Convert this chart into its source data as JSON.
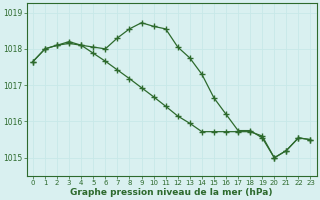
{
  "line1_x": [
    0,
    1,
    2,
    3,
    4,
    5,
    6,
    7,
    8,
    9,
    10,
    11,
    12,
    13,
    14,
    15,
    16,
    17,
    18,
    19,
    20,
    21,
    22,
    23
  ],
  "line1_y": [
    1017.65,
    1018.0,
    1018.1,
    1018.2,
    1018.1,
    1018.05,
    1018.0,
    1018.3,
    1018.55,
    1018.72,
    1018.62,
    1018.55,
    1018.05,
    1017.75,
    1017.3,
    1016.65,
    1016.2,
    1015.75,
    1015.75,
    1015.55,
    1015.0,
    1015.2,
    1015.55,
    1015.5
  ],
  "line2_x": [
    0,
    1,
    2,
    3,
    4,
    5,
    6,
    7,
    8,
    9,
    10,
    11,
    12,
    13,
    14,
    15,
    16,
    17,
    18,
    19,
    20,
    21,
    22,
    23
  ],
  "line2_y": [
    1017.65,
    1018.0,
    1018.1,
    1018.15,
    1018.1,
    1017.88,
    1017.66,
    1017.42,
    1017.18,
    1016.93,
    1016.68,
    1016.42,
    1016.15,
    1015.95,
    1015.72,
    1015.72,
    1015.72,
    1015.72,
    1015.72,
    1015.6,
    1015.0,
    1015.2,
    1015.55,
    1015.5
  ],
  "color": "#2d6a2d",
  "bg_color": "#d9f0f0",
  "grid_color_minor": "#c8e8e8",
  "grid_color_major": "#a8d8d8",
  "xlabel": "Graphe pression niveau de la mer (hPa)",
  "xlim": [
    -0.5,
    23.5
  ],
  "ylim": [
    1014.5,
    1019.25
  ],
  "yticks": [
    1015,
    1016,
    1017,
    1018,
    1019
  ],
  "xticks": [
    0,
    1,
    2,
    3,
    4,
    5,
    6,
    7,
    8,
    9,
    10,
    11,
    12,
    13,
    14,
    15,
    16,
    17,
    18,
    19,
    20,
    21,
    22,
    23
  ],
  "marker": "+"
}
